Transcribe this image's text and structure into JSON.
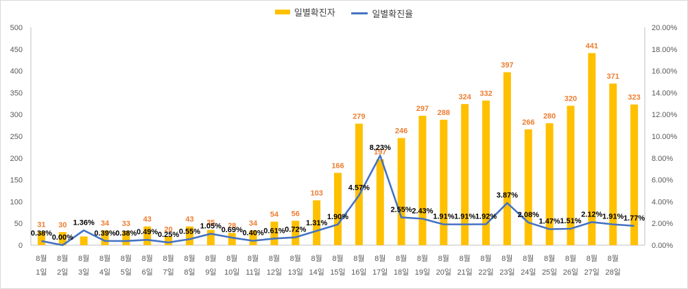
{
  "legend": {
    "bar_label": "일별확진자",
    "line_label": "일별확진율"
  },
  "colors": {
    "bar": "#FFC000",
    "line": "#4472C4",
    "bar_label": "#ED7D31",
    "line_label": "#000000",
    "axis_text": "#595959",
    "grid": "#d9d9d9"
  },
  "chart_data": {
    "type": "bar",
    "categories": [
      [
        "8월",
        "1일"
      ],
      [
        "8월",
        "2일"
      ],
      [
        "8월",
        "3일"
      ],
      [
        "8월",
        "4일"
      ],
      [
        "8월",
        "5일"
      ],
      [
        "8월",
        "6일"
      ],
      [
        "8월",
        "7일"
      ],
      [
        "8월",
        "8일"
      ],
      [
        "8월",
        "9일"
      ],
      [
        "8월",
        "10일"
      ],
      [
        "8월",
        "11일"
      ],
      [
        "8월",
        "12일"
      ],
      [
        "8월",
        "13일"
      ],
      [
        "8월",
        "14일"
      ],
      [
        "8월",
        "15일"
      ],
      [
        "8월",
        "16일"
      ],
      [
        "8월",
        "17일"
      ],
      [
        "8월",
        "18일"
      ],
      [
        "8월",
        "19일"
      ],
      [
        "8월",
        "20일"
      ],
      [
        "8월",
        "21일"
      ],
      [
        "8월",
        "22일"
      ],
      [
        "8월",
        "23일"
      ],
      [
        "8월",
        "24일"
      ],
      [
        "8월",
        "25일"
      ],
      [
        "8월",
        "26일"
      ],
      [
        "8월",
        "27일"
      ],
      [
        "8월",
        "28일"
      ]
    ],
    "series": [
      {
        "name": "일별확진자",
        "type": "bar",
        "axis": "left",
        "values": [
          31,
          30,
          20,
          34,
          33,
          43,
          20,
          43,
          35,
          28,
          34,
          54,
          56,
          103,
          166,
          279,
          197,
          246,
          297,
          288,
          324,
          332,
          397,
          266,
          280,
          320,
          441,
          371
        ],
        "labels": [
          "31",
          "30",
          "",
          "34",
          "33",
          "43",
          "20",
          "43",
          "35",
          "28",
          "34",
          "54",
          "56",
          "103",
          "166",
          "279",
          "197",
          "246",
          "297",
          "288",
          "324",
          "332",
          "397",
          "266",
          "280",
          "320",
          "441",
          "371"
        ]
      },
      {
        "name": "일별확진율",
        "type": "line",
        "axis": "right",
        "values": [
          0.38,
          0.0,
          1.36,
          0.39,
          0.38,
          0.49,
          0.25,
          0.55,
          1.05,
          0.69,
          0.4,
          0.61,
          0.72,
          1.31,
          1.9,
          4.57,
          8.23,
          2.55,
          2.43,
          1.91,
          1.91,
          1.92,
          3.87,
          2.08,
          1.47,
          1.51,
          2.12,
          1.91
        ],
        "labels": [
          "0.38%",
          "0.00%",
          "1.36%",
          "0.39%",
          "0.38%",
          "0.49%",
          "0.25%",
          "0.55%",
          "1.05%",
          "0.69%",
          "0.40%",
          "0.61%",
          "0.72%",
          "1.31%",
          "1.90%",
          "4.57%",
          "8.23%",
          "2.55%",
          "2.43%",
          "1.91%",
          "1.91%",
          "1.92%",
          "3.87%",
          "2.08%",
          "1.47%",
          "1.51%",
          "2.12%",
          "1.91%"
        ]
      }
    ],
    "extra_bar": {
      "value": 323,
      "label": "323"
    },
    "extra_line": {
      "value": 1.77,
      "label": "1.77%"
    },
    "y_left": {
      "min": 0,
      "max": 500,
      "step": 50,
      "ticks": [
        "0",
        "50",
        "100",
        "150",
        "200",
        "250",
        "300",
        "350",
        "400",
        "450",
        "500"
      ]
    },
    "y_right": {
      "min": 0,
      "max": 20,
      "step": 2,
      "ticks": [
        "0.00%",
        "2.00%",
        "4.00%",
        "6.00%",
        "8.00%",
        "10.00%",
        "12.00%",
        "14.00%",
        "16.00%",
        "18.00%",
        "20.00%"
      ]
    },
    "grid": false,
    "legend_position": "top-center"
  }
}
